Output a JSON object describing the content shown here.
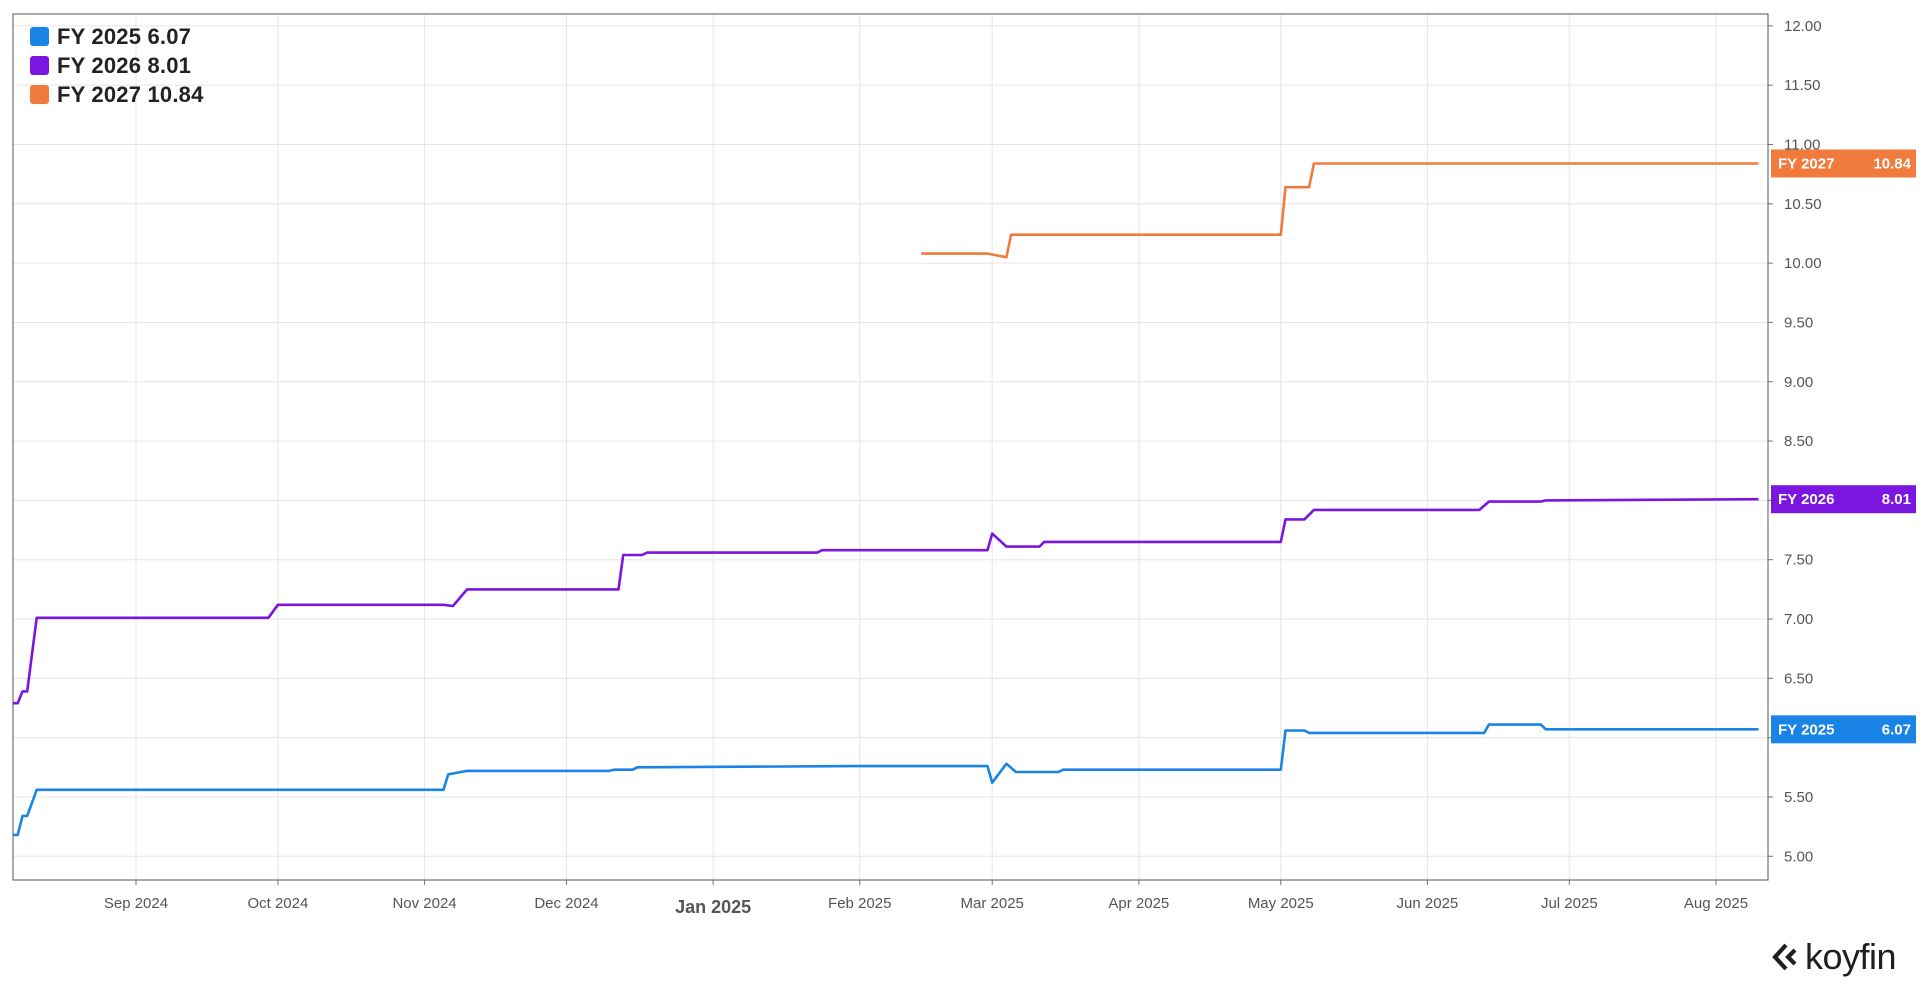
{
  "chart_data": {
    "type": "line",
    "ylim": [
      4.8,
      12.1
    ],
    "y_ticks": [
      "5.00",
      "5.50",
      "6.00",
      "6.50",
      "7.00",
      "7.50",
      "8.00",
      "8.50",
      "9.00",
      "9.50",
      "10.00",
      "10.50",
      "11.00",
      "11.50",
      "12.00"
    ],
    "x_ticks": [
      {
        "label": "Sep 2024",
        "date": "2024-09-01"
      },
      {
        "label": "Oct 2024",
        "date": "2024-10-01"
      },
      {
        "label": "Nov 2024",
        "date": "2024-11-01"
      },
      {
        "label": "Dec 2024",
        "date": "2024-12-01"
      },
      {
        "label": "Jan 2025",
        "date": "2025-01-01",
        "major": true
      },
      {
        "label": "Feb 2025",
        "date": "2025-02-01"
      },
      {
        "label": "Mar 2025",
        "date": "2025-03-01"
      },
      {
        "label": "Apr 2025",
        "date": "2025-04-01"
      },
      {
        "label": "May 2025",
        "date": "2025-05-01"
      },
      {
        "label": "Jun 2025",
        "date": "2025-06-01"
      },
      {
        "label": "Jul 2025",
        "date": "2025-07-01"
      },
      {
        "label": "Aug 2025",
        "date": "2025-08-01"
      }
    ],
    "xlim": [
      "2024-08-06",
      "2025-08-12"
    ],
    "grid": true,
    "legend_position": "top-left",
    "series": [
      {
        "name": "FY 2025",
        "last": "6.07",
        "color": "#1a84e6",
        "points": [
          [
            "2024-08-06",
            5.18
          ],
          [
            "2024-08-07",
            5.18
          ],
          [
            "2024-08-08",
            5.34
          ],
          [
            "2024-08-09",
            5.34
          ],
          [
            "2024-08-11",
            5.56
          ],
          [
            "2024-08-13",
            5.56
          ],
          [
            "2024-11-01",
            5.56
          ],
          [
            "2024-11-05",
            5.56
          ],
          [
            "2024-11-06",
            5.69
          ],
          [
            "2024-11-10",
            5.72
          ],
          [
            "2024-12-10",
            5.72
          ],
          [
            "2024-12-11",
            5.73
          ],
          [
            "2024-12-15",
            5.73
          ],
          [
            "2024-12-16",
            5.75
          ],
          [
            "2025-01-31",
            5.76
          ],
          [
            "2025-02-28",
            5.76
          ],
          [
            "2025-03-01",
            5.62
          ],
          [
            "2025-03-04",
            5.78
          ],
          [
            "2025-03-06",
            5.71
          ],
          [
            "2025-03-15",
            5.71
          ],
          [
            "2025-03-16",
            5.73
          ],
          [
            "2025-05-01",
            5.73
          ],
          [
            "2025-05-02",
            6.06
          ],
          [
            "2025-05-06",
            6.06
          ],
          [
            "2025-05-07",
            6.04
          ],
          [
            "2025-06-13",
            6.04
          ],
          [
            "2025-06-14",
            6.11
          ],
          [
            "2025-06-25",
            6.11
          ],
          [
            "2025-06-26",
            6.07
          ],
          [
            "2025-08-10",
            6.07
          ]
        ]
      },
      {
        "name": "FY 2026",
        "last": "8.01",
        "color": "#7b16e0",
        "points": [
          [
            "2024-08-06",
            6.29
          ],
          [
            "2024-08-07",
            6.29
          ],
          [
            "2024-08-08",
            6.39
          ],
          [
            "2024-08-09",
            6.39
          ],
          [
            "2024-08-11",
            7.01
          ],
          [
            "2024-08-13",
            7.01
          ],
          [
            "2024-09-27",
            7.01
          ],
          [
            "2024-09-29",
            7.01
          ],
          [
            "2024-10-01",
            7.12
          ],
          [
            "2024-11-05",
            7.12
          ],
          [
            "2024-11-07",
            7.11
          ],
          [
            "2024-11-10",
            7.25
          ],
          [
            "2024-12-12",
            7.25
          ],
          [
            "2024-12-13",
            7.54
          ],
          [
            "2024-12-17",
            7.54
          ],
          [
            "2024-12-18",
            7.56
          ],
          [
            "2025-01-23",
            7.56
          ],
          [
            "2025-01-24",
            7.58
          ],
          [
            "2025-02-28",
            7.58
          ],
          [
            "2025-03-01",
            7.72
          ],
          [
            "2025-03-04",
            7.61
          ],
          [
            "2025-03-11",
            7.61
          ],
          [
            "2025-03-12",
            7.65
          ],
          [
            "2025-05-01",
            7.65
          ],
          [
            "2025-05-02",
            7.84
          ],
          [
            "2025-05-06",
            7.84
          ],
          [
            "2025-05-08",
            7.92
          ],
          [
            "2025-06-12",
            7.92
          ],
          [
            "2025-06-14",
            7.99
          ],
          [
            "2025-06-25",
            7.99
          ],
          [
            "2025-06-26",
            8.0
          ],
          [
            "2025-08-10",
            8.01
          ]
        ]
      },
      {
        "name": "FY 2027",
        "last": "10.84",
        "color": "#f07b3c",
        "points": [
          [
            "2025-02-14",
            10.08
          ],
          [
            "2025-02-28",
            10.08
          ],
          [
            "2025-03-04",
            10.05
          ],
          [
            "2025-03-05",
            10.24
          ],
          [
            "2025-05-01",
            10.24
          ],
          [
            "2025-05-02",
            10.64
          ],
          [
            "2025-05-07",
            10.64
          ],
          [
            "2025-05-08",
            10.84
          ],
          [
            "2025-08-10",
            10.84
          ]
        ]
      }
    ]
  },
  "brand": {
    "name": "koyfin"
  }
}
